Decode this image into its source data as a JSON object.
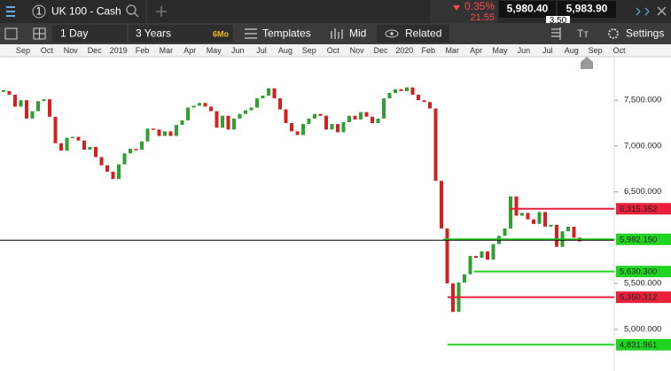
{
  "toolbar": {
    "tab_number": "1",
    "instrument": "UK 100 - Cash",
    "change_pct": "0.35%",
    "change_pts": "21.55",
    "sell": "5,980.40",
    "spread": "3.50",
    "buy": "5,983.90",
    "interval": "1 Day",
    "range": "3 Years",
    "range_badge": "6Mo",
    "templates": "Templates",
    "price_type": "Mid",
    "related": "Related",
    "settings": "Settings"
  },
  "chart_data": {
    "type": "candlestick",
    "months": [
      "Sep",
      "Oct",
      "Nov",
      "Dec",
      "2019",
      "Feb",
      "Mar",
      "Apr",
      "May",
      "Jun",
      "Jul",
      "Aug",
      "Sep",
      "Oct",
      "Nov",
      "Dec",
      "2020",
      "Feb",
      "Mar",
      "Apr",
      "May",
      "Jun",
      "Jul",
      "Aug",
      "Sep",
      "Oct"
    ],
    "values": [
      7600,
      7560,
      7430,
      7500,
      7300,
      7380,
      7490,
      7510,
      7320,
      7030,
      6950,
      7090,
      7100,
      7060,
      6960,
      6990,
      6880,
      6790,
      6720,
      6640,
      6800,
      6920,
      6970,
      6960,
      7050,
      7190,
      7180,
      7110,
      7160,
      7110,
      7230,
      7280,
      7420,
      7440,
      7470,
      7430,
      7380,
      7200,
      7330,
      7180,
      7300,
      7350,
      7390,
      7420,
      7520,
      7550,
      7630,
      7520,
      7400,
      7250,
      7160,
      7120,
      7240,
      7300,
      7350,
      7330,
      7180,
      7240,
      7150,
      7260,
      7330,
      7290,
      7370,
      7320,
      7250,
      7300,
      7520,
      7580,
      7620,
      7600,
      7640,
      7560,
      7500,
      7480,
      7410,
      6620,
      6100,
      5500,
      5190,
      5510,
      5600,
      5800,
      5780,
      5850,
      5760,
      5930,
      6020,
      6100,
      6450,
      6240,
      6270,
      6200,
      6150,
      6280,
      6120,
      6140,
      5900,
      6070,
      6120,
      6000,
      5960
    ],
    "up_color": "#2fa02f",
    "down_color": "#d62020",
    "ylim": [
      4545,
      7975
    ],
    "yticks": [
      {
        "value": 5000,
        "label": "5,000.000"
      },
      {
        "value": 5500,
        "label": "5,500.000"
      },
      {
        "value": 6500,
        "label": "6,500.000"
      },
      {
        "value": 7000,
        "label": "7,000.000"
      },
      {
        "value": 7500,
        "label": "7,500.000"
      }
    ],
    "current": {
      "value": 5982.15,
      "label": "5,982.150",
      "color": "#000000"
    },
    "levels": [
      {
        "value": 6315.352,
        "label": "6,315.352",
        "color": "#e8203a"
      },
      {
        "value": 5982.15,
        "label": "5,982.150",
        "color": "#22d422"
      },
      {
        "value": 5630.3,
        "label": "5,630.300",
        "color": "#22d422"
      },
      {
        "value": 5350.312,
        "label": "5,350.312",
        "color": "#e8203a"
      },
      {
        "value": 4831.961,
        "label": "4,831.961",
        "color": "#22d422"
      }
    ]
  }
}
